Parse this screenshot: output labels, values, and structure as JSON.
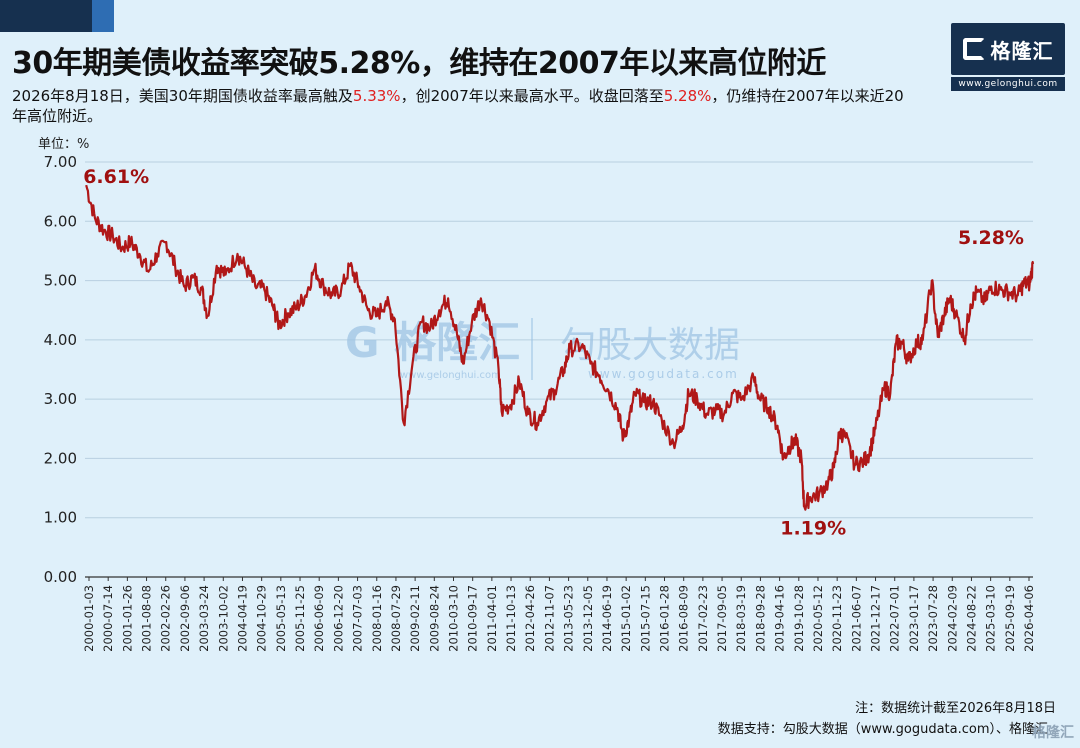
{
  "header": {
    "title": "30年期美债收益率突破5.28%，维持在2007年以来高位附近",
    "subtitle_parts": [
      {
        "text": "2026年8月18日，美国30年期国债收益率最高触及",
        "hl": false
      },
      {
        "text": "5.33%",
        "hl": true
      },
      {
        "text": "，创2007年以来最高水平。收盘回落至",
        "hl": false
      },
      {
        "text": "5.28%",
        "hl": true
      },
      {
        "text": "，仍维持在2007年以来近20年高位附近。",
        "hl": false
      }
    ]
  },
  "logo": {
    "brand": "格隆汇",
    "url": "www.gelonghui.com"
  },
  "watermark": {
    "left": "格隆汇",
    "right": "勾股大数据",
    "url_left": "www.gelonghui.com",
    "url_right": "www.gogudata.com"
  },
  "unit_label": "单位：%",
  "notes": {
    "note1": "注：数据统计截至2026年8月18日",
    "note2": "数据支持：勾股大数据（www.gogudata.com）、格隆汇"
  },
  "bottom_watermark": "格隆汇",
  "colors": {
    "line": "#b01818",
    "annotation": "#a01010",
    "grid": "#b8cfe0",
    "axis": "#333333",
    "accent_red": "#e02020",
    "brand_dark": "#16304f"
  },
  "chart_data": {
    "type": "line",
    "ylim": [
      0,
      7
    ],
    "yticks": [
      "0.00",
      "1.00",
      "2.00",
      "3.00",
      "4.00",
      "5.00",
      "6.00",
      "7.00"
    ],
    "grid": "horizontal",
    "xticks": [
      "2000-01-03",
      "2000-07-14",
      "2001-01-26",
      "2001-08-08",
      "2002-02-26",
      "2002-09-06",
      "2003-03-24",
      "2003-10-02",
      "2004-04-19",
      "2004-10-29",
      "2005-05-13",
      "2005-11-25",
      "2006-06-09",
      "2006-12-20",
      "2007-07-03",
      "2008-01-16",
      "2008-07-29",
      "2009-02-11",
      "2009-08-24",
      "2010-03-10",
      "2010-09-17",
      "2011-04-01",
      "2011-10-13",
      "2012-04-26",
      "2012-11-07",
      "2013-05-23",
      "2013-12-05",
      "2014-06-19",
      "2015-01-02",
      "2015-07-15",
      "2016-01-28",
      "2016-08-09",
      "2017-02-23",
      "2017-09-05",
      "2018-03-19",
      "2018-09-28",
      "2019-04-16",
      "2019-10-28",
      "2020-05-12",
      "2020-11-23",
      "2021-06-07",
      "2021-12-17",
      "2022-07-01",
      "2023-01-17",
      "2023-07-28",
      "2024-02-09",
      "2024-08-22",
      "2025-03-10",
      "2025-09-19",
      "2026-04-06"
    ],
    "x_range": [
      "2000-01-03",
      "2026-08-18"
    ],
    "series": [
      {
        "x": [
          "2000-01",
          "2000-04",
          "2000-07",
          "2000-10",
          "2001-01",
          "2001-04",
          "2001-07",
          "2001-10",
          "2002-01",
          "2002-04",
          "2002-07",
          "2002-10",
          "2003-01",
          "2003-04",
          "2003-06",
          "2003-09",
          "2003-12",
          "2004-04",
          "2004-07",
          "2004-10",
          "2005-01",
          "2005-04",
          "2005-06",
          "2005-09",
          "2005-12",
          "2006-03",
          "2006-06",
          "2006-09",
          "2006-12",
          "2007-03",
          "2007-06",
          "2007-09",
          "2007-12",
          "2008-03",
          "2008-06",
          "2008-09",
          "2008-12",
          "2009-03",
          "2009-06",
          "2009-09",
          "2009-12",
          "2010-03",
          "2010-06",
          "2010-08",
          "2010-11",
          "2011-02",
          "2011-05",
          "2011-08",
          "2011-09",
          "2011-12",
          "2012-03",
          "2012-06",
          "2012-09",
          "2012-12",
          "2013-03",
          "2013-06",
          "2013-08",
          "2013-12",
          "2014-03",
          "2014-06",
          "2014-09",
          "2014-12",
          "2015-02",
          "2015-04",
          "2015-06",
          "2015-09",
          "2015-12",
          "2016-03",
          "2016-07",
          "2016-10",
          "2016-12",
          "2017-03",
          "2017-06",
          "2017-09",
          "2017-12",
          "2018-03",
          "2018-06",
          "2018-10",
          "2018-12",
          "2019-03",
          "2019-06",
          "2019-08",
          "2019-10",
          "2019-12",
          "2020-02",
          "2020-03",
          "2020-05",
          "2020-08",
          "2020-11",
          "2021-01",
          "2021-03",
          "2021-05",
          "2021-08",
          "2021-11",
          "2022-01",
          "2022-03",
          "2022-06",
          "2022-08",
          "2022-10",
          "2022-12",
          "2023-02",
          "2023-05",
          "2023-07",
          "2023-10",
          "2023-12",
          "2024-02",
          "2024-04",
          "2024-06",
          "2024-09",
          "2024-11",
          "2025-01",
          "2025-04",
          "2025-06",
          "2025-09",
          "2025-12",
          "2026-03",
          "2026-05",
          "2026-07",
          "2026-08-18"
        ],
        "values": [
          6.61,
          6.05,
          5.85,
          5.75,
          5.55,
          5.65,
          5.45,
          5.15,
          5.45,
          5.65,
          5.25,
          4.9,
          5.05,
          4.85,
          4.4,
          5.25,
          5.1,
          5.45,
          5.2,
          4.9,
          4.85,
          4.55,
          4.25,
          4.45,
          4.55,
          4.75,
          5.2,
          4.9,
          4.75,
          4.85,
          5.25,
          4.9,
          4.5,
          4.4,
          4.65,
          4.35,
          2.6,
          3.6,
          4.3,
          4.2,
          4.5,
          4.7,
          4.1,
          3.6,
          4.3,
          4.7,
          4.3,
          3.5,
          2.8,
          2.9,
          3.3,
          2.75,
          2.6,
          2.95,
          3.15,
          3.5,
          3.85,
          3.9,
          3.6,
          3.4,
          3.15,
          2.85,
          2.35,
          2.65,
          3.1,
          2.95,
          2.95,
          2.65,
          2.25,
          2.55,
          3.1,
          3.0,
          2.75,
          2.8,
          2.75,
          3.1,
          3.0,
          3.35,
          3.0,
          2.85,
          2.55,
          2.0,
          2.2,
          2.3,
          2.0,
          1.19,
          1.35,
          1.4,
          1.6,
          1.85,
          2.45,
          2.35,
          1.9,
          1.95,
          2.1,
          2.5,
          3.2,
          3.1,
          3.95,
          3.95,
          3.65,
          3.95,
          4.0,
          5.0,
          4.05,
          4.4,
          4.7,
          4.45,
          4.0,
          4.6,
          4.8,
          4.65,
          4.9,
          4.85,
          4.8,
          4.75,
          4.95,
          4.95,
          5.28
        ]
      }
    ],
    "annotations": [
      {
        "label": "6.61%",
        "x": "2000-01",
        "y": 6.61
      },
      {
        "label": "1.19%",
        "x": "2020-03",
        "y": 1.19
      },
      {
        "label": "5.28%",
        "x": "2026-08-18",
        "y": 5.28
      }
    ]
  }
}
